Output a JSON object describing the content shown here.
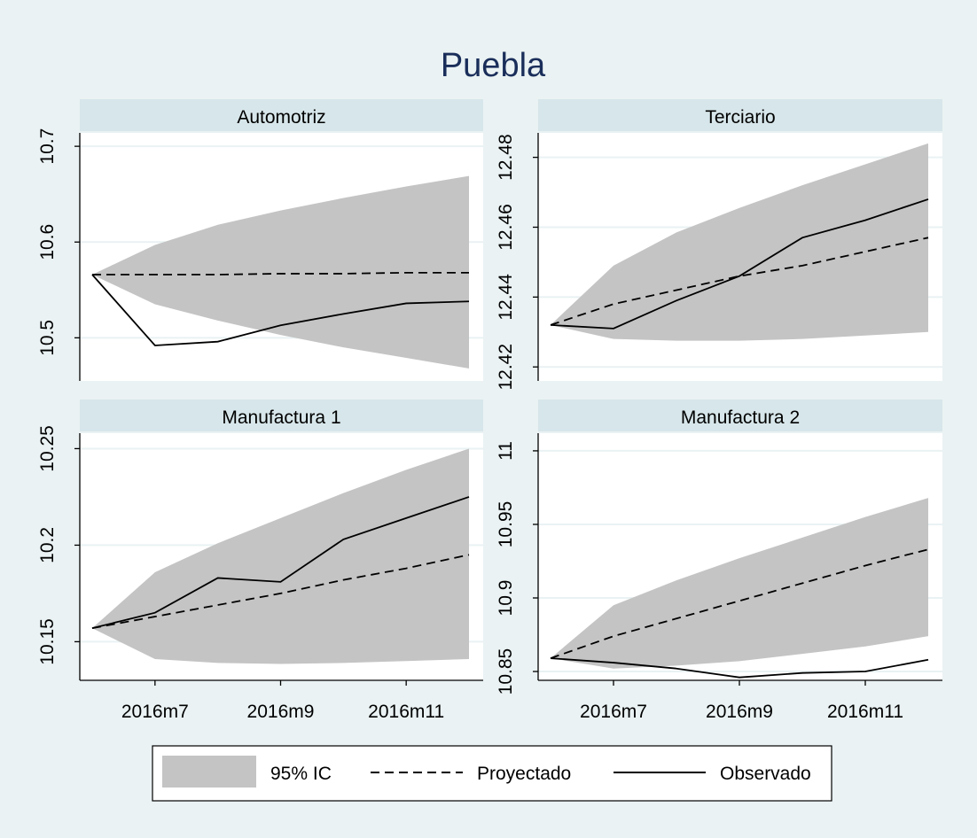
{
  "title": "Puebla",
  "x_ticks": [
    "2016m7",
    "2016m9",
    "2016m11"
  ],
  "legend": {
    "ci": "95% IC",
    "proj": "Proyectado",
    "obs": "Observado"
  },
  "colors": {
    "background": "#eaf2f3",
    "strip": "#d7e6ea",
    "ci": "#c4c4c4",
    "title": "#1a2e5a"
  },
  "chart_data": [
    {
      "type": "line",
      "title": "Automotriz",
      "x": [
        "2016m6",
        "2016m7",
        "2016m8",
        "2016m9",
        "2016m10",
        "2016m11",
        "2016m12"
      ],
      "xticks": [
        "2016m7",
        "2016m9",
        "2016m11"
      ],
      "yticks": [
        10.5,
        10.6,
        10.7
      ],
      "ytick_labels": [
        "10.5",
        "10.6",
        "10.7"
      ],
      "ylim": [
        10.455,
        10.714
      ],
      "series": [
        {
          "name": "95% IC",
          "lower": [
            10.566,
            10.535,
            10.518,
            10.503,
            10.49,
            10.479,
            10.468
          ],
          "upper": [
            10.566,
            10.597,
            10.618,
            10.633,
            10.646,
            10.658,
            10.669
          ]
        },
        {
          "name": "Proyectado",
          "values": [
            10.566,
            10.566,
            10.566,
            10.567,
            10.567,
            10.568,
            10.568
          ]
        },
        {
          "name": "Observado",
          "values": [
            10.566,
            10.492,
            10.496,
            10.513,
            10.525,
            10.536,
            10.538
          ]
        }
      ]
    },
    {
      "type": "line",
      "title": "Terciario",
      "x": [
        "2016m6",
        "2016m7",
        "2016m8",
        "2016m9",
        "2016m10",
        "2016m11",
        "2016m12"
      ],
      "xticks": [
        "2016m7",
        "2016m9",
        "2016m11"
      ],
      "yticks": [
        12.42,
        12.44,
        12.46,
        12.48
      ],
      "ytick_labels": [
        "12.42",
        "12.44",
        "12.46",
        "12.48"
      ],
      "ylim": [
        12.416,
        12.487
      ],
      "series": [
        {
          "name": "95% IC",
          "lower": [
            12.432,
            12.428,
            12.4275,
            12.4275,
            12.428,
            12.429,
            12.43
          ],
          "upper": [
            12.432,
            12.449,
            12.4585,
            12.4655,
            12.472,
            12.478,
            12.484
          ]
        },
        {
          "name": "Proyectado",
          "values": [
            12.432,
            12.438,
            12.442,
            12.446,
            12.449,
            12.453,
            12.457
          ]
        },
        {
          "name": "Observado",
          "values": [
            12.432,
            12.431,
            12.439,
            12.446,
            12.457,
            12.462,
            12.468
          ]
        }
      ]
    },
    {
      "type": "line",
      "title": "Manufactura 1",
      "x": [
        "2016m6",
        "2016m7",
        "2016m8",
        "2016m9",
        "2016m10",
        "2016m11",
        "2016m12"
      ],
      "xticks": [
        "2016m7",
        "2016m9",
        "2016m11"
      ],
      "yticks": [
        10.15,
        10.2,
        10.25
      ],
      "ytick_labels": [
        "10.15",
        "10.2",
        "10.25"
      ],
      "ylim": [
        10.13,
        10.258
      ],
      "series": [
        {
          "name": "95% IC",
          "lower": [
            10.157,
            10.141,
            10.139,
            10.1385,
            10.139,
            10.14,
            10.141
          ],
          "upper": [
            10.157,
            10.186,
            10.201,
            10.214,
            10.227,
            10.239,
            10.25
          ]
        },
        {
          "name": "Proyectado",
          "values": [
            10.157,
            10.163,
            10.169,
            10.175,
            10.182,
            10.188,
            10.195
          ]
        },
        {
          "name": "Observado",
          "values": [
            10.157,
            10.165,
            10.183,
            10.181,
            10.203,
            10.214,
            10.225
          ]
        }
      ]
    },
    {
      "type": "line",
      "title": "Manufactura 2",
      "x": [
        "2016m6",
        "2016m7",
        "2016m8",
        "2016m9",
        "2016m10",
        "2016m11",
        "2016m12"
      ],
      "xticks": [
        "2016m7",
        "2016m9",
        "2016m11"
      ],
      "yticks": [
        10.85,
        10.9,
        10.95,
        11
      ],
      "ytick_labels": [
        "10.85",
        "10.9",
        "10.95",
        "11"
      ],
      "ylim": [
        10.844,
        11.012
      ],
      "series": [
        {
          "name": "95% IC",
          "lower": [
            10.859,
            10.852,
            10.854,
            10.857,
            10.862,
            10.867,
            10.874
          ],
          "upper": [
            10.859,
            10.895,
            10.912,
            10.927,
            10.941,
            10.955,
            10.968
          ]
        },
        {
          "name": "Proyectado",
          "values": [
            10.859,
            10.874,
            10.886,
            10.898,
            10.91,
            10.922,
            10.933
          ]
        },
        {
          "name": "Observado",
          "values": [
            10.859,
            10.856,
            10.852,
            10.846,
            10.849,
            10.85,
            10.858
          ]
        }
      ]
    }
  ]
}
